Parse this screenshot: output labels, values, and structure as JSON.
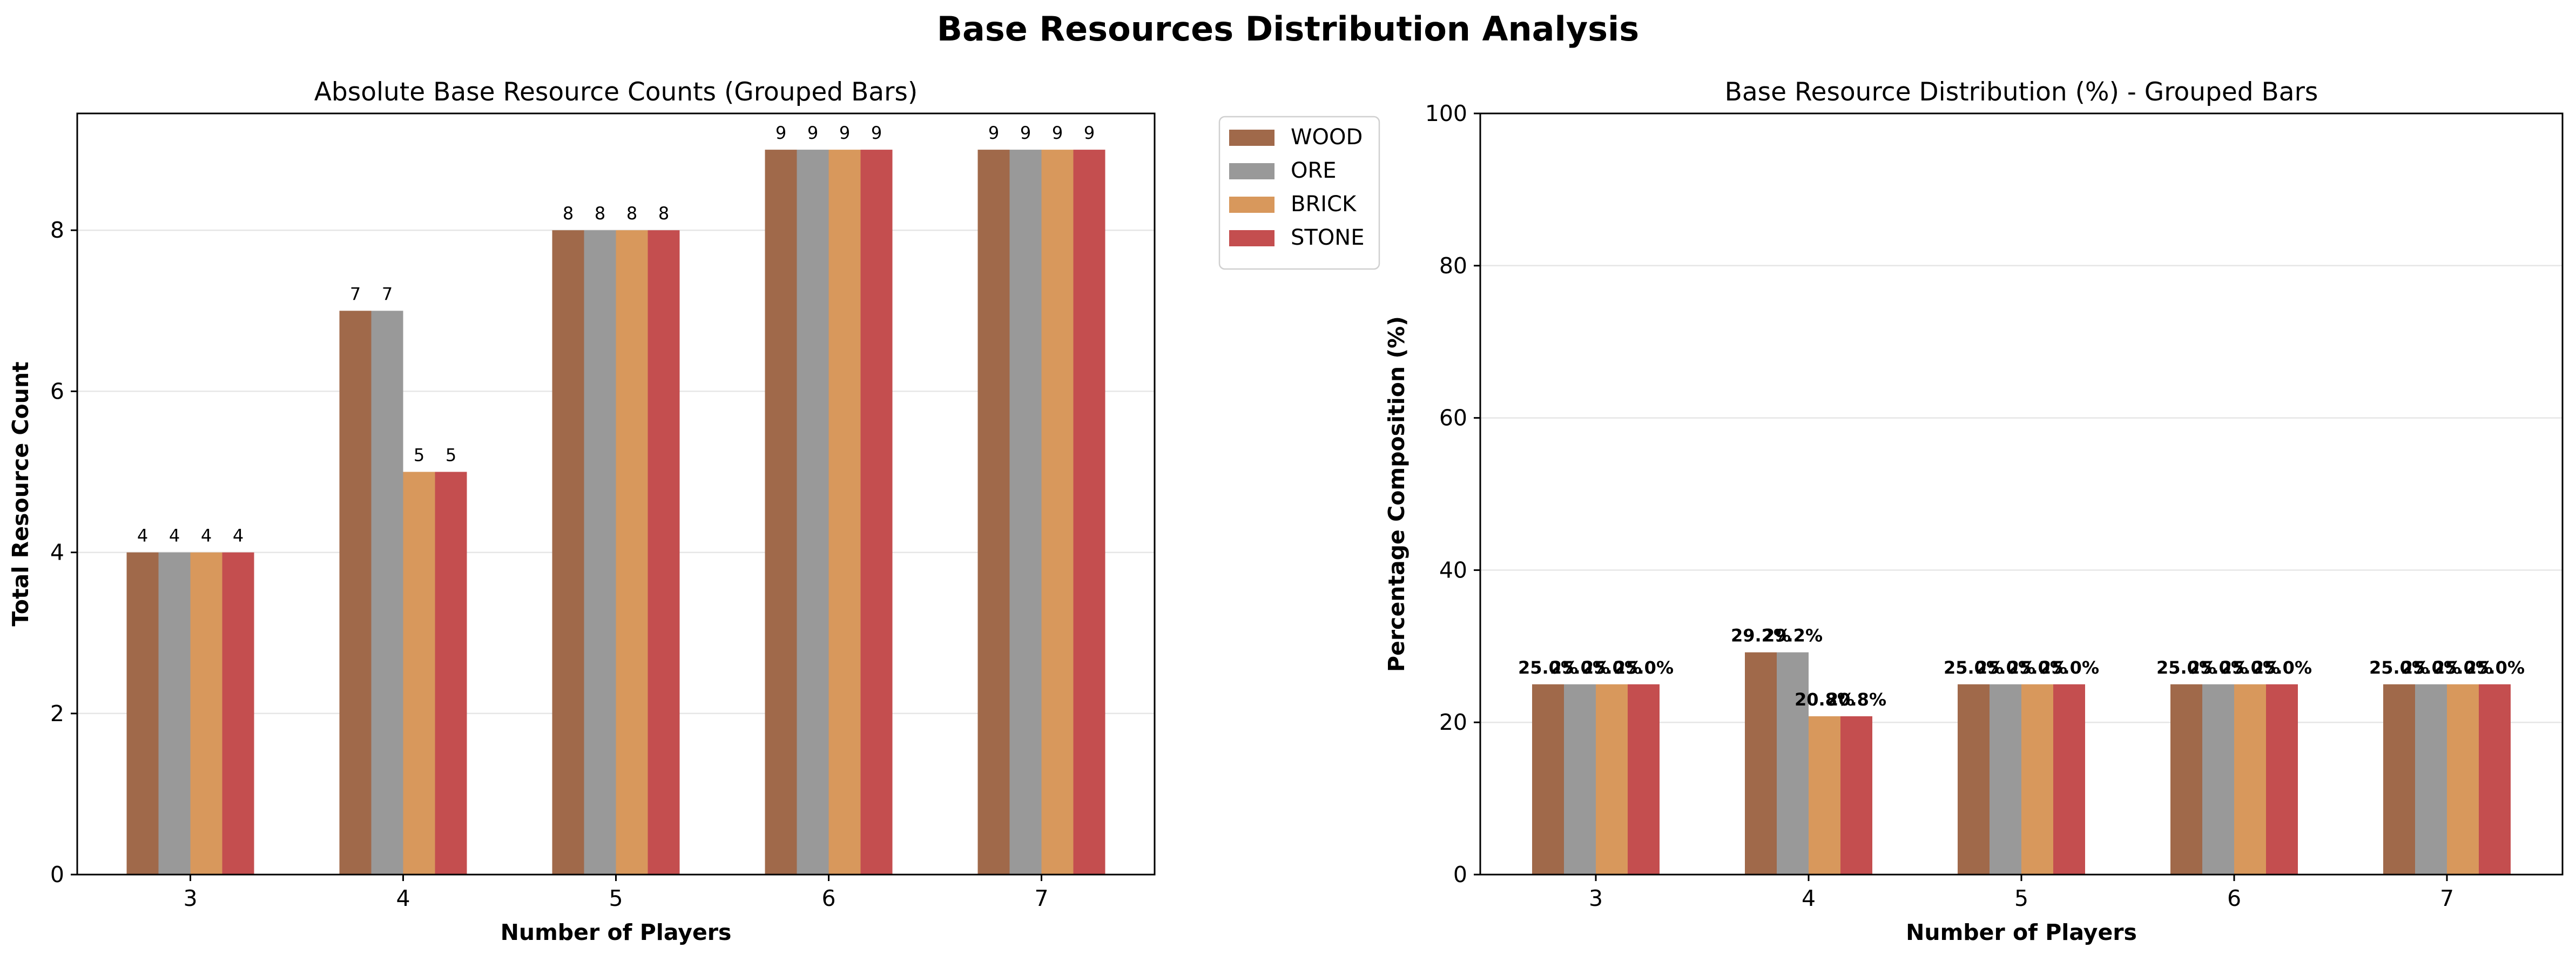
{
  "suptitle": "Base Resources Distribution Analysis",
  "colors": {
    "WOOD": "#a0694a",
    "ORE": "#999999",
    "BRICK": "#d8985c",
    "STONE": "#c44e4f",
    "grid": "#e6e6e6",
    "axis": "#000000"
  },
  "legend": {
    "placement": "outside-right-of-left-chart",
    "entries": [
      "WOOD",
      "ORE",
      "BRICK",
      "STONE"
    ]
  },
  "chart_data": [
    {
      "type": "bar",
      "title": "Absolute Base Resource Counts (Grouped Bars)",
      "xlabel": "Number of Players",
      "ylabel": "Total Resource Count",
      "categories": [
        "3",
        "4",
        "5",
        "6",
        "7"
      ],
      "ylim": [
        0,
        9.45
      ],
      "yticks": [
        0,
        2,
        4,
        6,
        8
      ],
      "grid": "y",
      "series": [
        {
          "name": "WOOD",
          "values": [
            4,
            7,
            8,
            9,
            9
          ]
        },
        {
          "name": "ORE",
          "values": [
            4,
            7,
            8,
            9,
            9
          ]
        },
        {
          "name": "BRICK",
          "values": [
            4,
            5,
            8,
            9,
            9
          ]
        },
        {
          "name": "STONE",
          "values": [
            4,
            5,
            8,
            9,
            9
          ]
        }
      ],
      "data_labels": [
        [
          "4",
          "7",
          "8",
          "9",
          "9"
        ],
        [
          "4",
          "7",
          "8",
          "9",
          "9"
        ],
        [
          "4",
          "5",
          "8",
          "9",
          "9"
        ],
        [
          "4",
          "5",
          "8",
          "9",
          "9"
        ]
      ]
    },
    {
      "type": "bar",
      "title": "Base Resource Distribution (%) - Grouped Bars",
      "xlabel": "Number of Players",
      "ylabel": "Percentage Composition (%)",
      "categories": [
        "3",
        "4",
        "5",
        "6",
        "7"
      ],
      "ylim": [
        0,
        100
      ],
      "yticks": [
        0,
        20,
        40,
        60,
        80,
        100
      ],
      "grid": "y",
      "series": [
        {
          "name": "WOOD",
          "values": [
            25.0,
            29.2,
            25.0,
            25.0,
            25.0
          ]
        },
        {
          "name": "ORE",
          "values": [
            25.0,
            29.2,
            25.0,
            25.0,
            25.0
          ]
        },
        {
          "name": "BRICK",
          "values": [
            25.0,
            20.8,
            25.0,
            25.0,
            25.0
          ]
        },
        {
          "name": "STONE",
          "values": [
            25.0,
            20.8,
            25.0,
            25.0,
            25.0
          ]
        }
      ],
      "data_labels": [
        [
          "25.0%",
          "29.2%",
          "25.0%",
          "25.0%",
          "25.0%"
        ],
        [
          "25.0%",
          "29.2%",
          "25.0%",
          "25.0%",
          "25.0%"
        ],
        [
          "25.0%",
          "20.8%",
          "25.0%",
          "25.0%",
          "25.0%"
        ],
        [
          "25.0%",
          "20.8%",
          "25.0%",
          "25.0%",
          "25.0%"
        ]
      ]
    }
  ]
}
